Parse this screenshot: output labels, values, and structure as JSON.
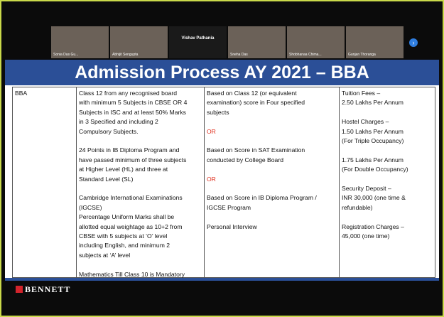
{
  "participants": [
    "Sonia Das Gu...",
    "Abhijit Sengupta",
    "Vishav Pathania",
    "Sneha Das",
    "Shobhanaa Chima...",
    "Gunjan Thoranga"
  ],
  "slide": {
    "title": "Admission Process AY 2021 – BBA",
    "table": {
      "rows": [
        [
          [
            {
              "lines": [
                "BBA"
              ]
            }
          ],
          [
            {
              "lines": [
                "Class 12 from any recognised board",
                "with minimum 5 Subjects in CBSE OR 4",
                "Subjects in ISC and at least 50% Marks",
                "in 3 Specified and including 2",
                "Compulsory Subjects."
              ]
            },
            {
              "lines": [
                "24 Points in IB Diploma Program and",
                "have passed minimum of three subjects",
                "at Higher Level (HL) and three at",
                "Standard Level (SL)"
              ]
            },
            {
              "lines": [
                "Cambridge International Examinations",
                "(IGCSE)",
                "Percentage Uniform Marks shall be",
                "allotted equal weightage as 10+2 from",
                "CBSE with 5 subjects at ‘O’ level",
                "including English, and minimum 2",
                "subjects at ‘A’ level"
              ]
            },
            {
              "lines": [
                "Mathematics Till Class 10 is Mandatory"
              ]
            }
          ],
          [
            {
              "lines": [
                "Based on Class 12 (or equivalent",
                "examination) score in Four specified",
                "subjects"
              ]
            },
            {
              "lines": [
                "OR"
              ],
              "color": "#e0301e"
            },
            {
              "lines": [
                "Based on Score in SAT Examination",
                "conducted by College Board"
              ]
            },
            {
              "lines": [
                "OR"
              ],
              "color": "#e0301e"
            },
            {
              "lines": [
                "Based on Score in IB Diploma Program /",
                "IGCSE Program"
              ]
            },
            {
              "lines": [
                "Personal Interview"
              ]
            }
          ],
          [
            {
              "lines": [
                "Tuition Fees –",
                "2.50 Lakhs Per Annum"
              ]
            },
            {
              "lines": [
                "Hostel Charges –",
                "1.50 Lakhs Per Annum",
                "(For Triple Occupancy)"
              ]
            },
            {
              "lines": [
                "1.75 Lakhs Per Annum",
                "(For Double Occupancy)"
              ]
            },
            {
              "lines": [
                "Security Deposit –",
                "INR 30,000 (one time &",
                "refundable)"
              ]
            },
            {
              "lines": [
                "Registration Charges –",
                "45,000 (one time)"
              ]
            }
          ]
        ]
      ]
    },
    "logo": "BENNETT"
  }
}
